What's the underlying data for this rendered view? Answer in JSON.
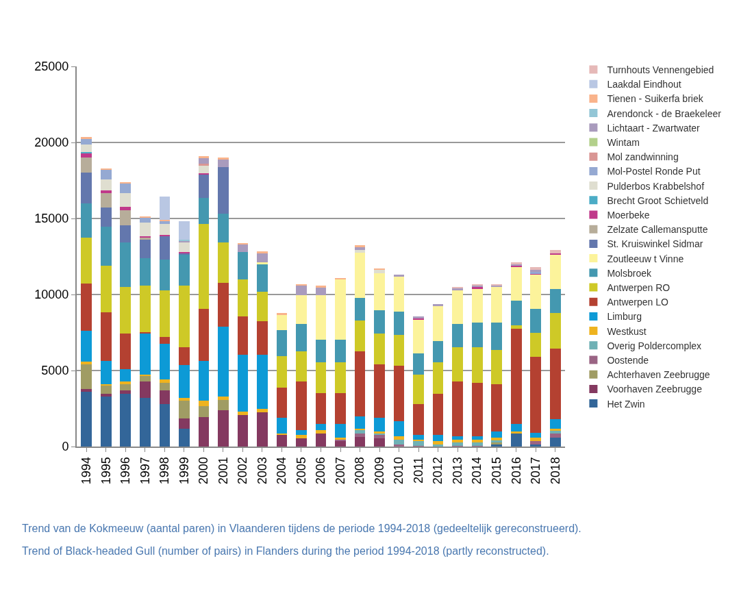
{
  "chart_data": {
    "type": "bar",
    "stacked": true,
    "categories": [
      "1994",
      "1995",
      "1996",
      "1997",
      "1998",
      "1999",
      "2000",
      "2001",
      "2002",
      "2003",
      "2004",
      "2005",
      "2006",
      "2007",
      "2008",
      "2009",
      "2010",
      "2011",
      "2012",
      "2013",
      "2014",
      "2015",
      "2016",
      "2017",
      "2018"
    ],
    "series": [
      {
        "name": "Het Zwin",
        "color": "#336699",
        "values": [
          3600,
          3290,
          3480,
          3180,
          2790,
          1170,
          null,
          null,
          null,
          null,
          null,
          null,
          null,
          null,
          null,
          null,
          null,
          null,
          null,
          null,
          null,
          150,
          870,
          150,
          570
        ]
      },
      {
        "name": "Voorhaven Zeebrugge",
        "color": "#843960",
        "values": [
          200,
          180,
          210,
          1110,
          900,
          690,
          1950,
          2370,
          2090,
          2270,
          750,
          540,
          860,
          360,
          650,
          560,
          null,
          null,
          null,
          null,
          null,
          null,
          null,
          null,
          null
        ]
      },
      {
        "name": "Achterhaven Zeebrugge",
        "color": "#a09c64",
        "values": [
          1600,
          530,
          400,
          330,
          510,
          1140,
          720,
          710,
          null,
          null,
          null,
          null,
          null,
          null,
          null,
          null,
          null,
          null,
          null,
          null,
          null,
          120,
          null,
          null,
          null
        ]
      },
      {
        "name": "Oostende",
        "color": "#9a6484",
        "values": [
          null,
          null,
          null,
          null,
          null,
          null,
          null,
          null,
          null,
          null,
          null,
          null,
          null,
          90,
          220,
          190,
          120,
          50,
          null,
          50,
          60,
          null,
          null,
          210,
          270
        ]
      },
      {
        "name": "Overig Poldercomplex",
        "color": "#6fb1b5",
        "values": [
          null,
          null,
          null,
          null,
          null,
          null,
          null,
          null,
          null,
          null,
          null,
          null,
          null,
          null,
          200,
          90,
          330,
          310,
          150,
          230,
          210,
          120,
          null,
          null,
          210
        ]
      },
      {
        "name": "Westkust",
        "color": "#eeb31f",
        "values": [
          200,
          120,
          210,
          120,
          210,
          210,
          330,
          220,
          210,
          210,
          120,
          230,
          210,
          120,
          120,
          150,
          230,
          110,
          210,
          190,
          200,
          180,
          120,
          240,
          120
        ]
      },
      {
        "name": "Limburg",
        "color": "#0d9ad6",
        "values": [
          2000,
          1500,
          800,
          2700,
          2330,
          2130,
          2610,
          4570,
          3720,
          3540,
          1010,
          300,
          420,
          920,
          810,
          890,
          1000,
          300,
          400,
          210,
          210,
          420,
          500,
          290,
          620
        ]
      },
      {
        "name": "Antwerpen LO",
        "color": "#b44131",
        "values": [
          3140,
          3230,
          2350,
          90,
          480,
          1200,
          3460,
          2910,
          2550,
          2220,
          2010,
          3230,
          2010,
          2010,
          4250,
          3540,
          3650,
          2030,
          2730,
          3620,
          3530,
          3120,
          6260,
          5030,
          4640
        ]
      },
      {
        "name": "Antwerpen RO",
        "color": "#cec927",
        "values": [
          3020,
          3050,
          3050,
          3050,
          3060,
          4040,
          5570,
          2660,
          2420,
          1940,
          2040,
          1950,
          2040,
          2040,
          2020,
          2030,
          2010,
          1920,
          2040,
          2250,
          2340,
          2240,
          220,
          1550,
          2340
        ]
      },
      {
        "name": "Molsbroek",
        "color": "#4498b0",
        "values": [
          2250,
          2540,
          2930,
          1820,
          2030,
          2030,
          1730,
          1890,
          1800,
          1820,
          1710,
          1800,
          1500,
          1500,
          1500,
          1530,
          1520,
          1420,
          1410,
          1500,
          1620,
          1820,
          1610,
          1600,
          1610
        ]
      },
      {
        "name": "Zoutleeuw t Vinne",
        "color": "#fcf39b",
        "values": [
          null,
          null,
          null,
          null,
          null,
          null,
          null,
          null,
          null,
          100,
          1040,
          1920,
          2930,
          3960,
          2960,
          2430,
          2330,
          2210,
          2300,
          2240,
          2210,
          2310,
          2250,
          2220,
          2220
        ]
      },
      {
        "name": "St. Kruiswinkel Sidmar",
        "color": "#6377ad",
        "values": [
          2030,
          1290,
          1100,
          1220,
          1500,
          120,
          1500,
          3050,
          null,
          null,
          null,
          null,
          null,
          null,
          null,
          null,
          null,
          null,
          null,
          null,
          null,
          null,
          null,
          null,
          null
        ]
      },
      {
        "name": "Zelzate Callemansputte",
        "color": "#b7ad9a",
        "values": [
          970,
          950,
          1020,
          130,
          null,
          null,
          null,
          null,
          null,
          null,
          null,
          null,
          null,
          null,
          null,
          null,
          null,
          null,
          null,
          null,
          null,
          null,
          null,
          null,
          null
        ]
      },
      {
        "name": "Moerbeke",
        "color": "#c0398a",
        "values": [
          250,
          150,
          200,
          90,
          120,
          80,
          120,
          null,
          null,
          null,
          null,
          null,
          null,
          null,
          null,
          null,
          null,
          80,
          null,
          null,
          100,
          null,
          90,
          90,
          100
        ]
      },
      {
        "name": "Brecht Groot Schietveld",
        "color": "#4bacc6",
        "values": [
          100,
          null,
          null,
          null,
          null,
          null,
          null,
          null,
          null,
          null,
          null,
          null,
          null,
          null,
          null,
          null,
          null,
          null,
          null,
          null,
          null,
          null,
          null,
          null,
          null
        ]
      },
      {
        "name": "Pulderbos Krabbelshof",
        "color": "#dfded0",
        "values": [
          500,
          750,
          930,
          900,
          720,
          620,
          500,
          null,
          null,
          null,
          null,
          null,
          null,
          null,
          210,
          200,
          null,
          null,
          null,
          null,
          null,
          null,
          null,
          null,
          null
        ]
      },
      {
        "name": "Mol-Postel Ronde Put",
        "color": "#95a9d2",
        "values": [
          370,
          600,
          600,
          330,
          180,
          null,
          null,
          null,
          null,
          null,
          null,
          null,
          null,
          null,
          null,
          null,
          null,
          null,
          null,
          null,
          null,
          null,
          null,
          90,
          null
        ]
      },
      {
        "name": "Mol zandwinning",
        "color": "#d99694",
        "values": [
          null,
          null,
          null,
          null,
          null,
          null,
          100,
          null,
          null,
          null,
          null,
          null,
          null,
          null,
          null,
          null,
          null,
          null,
          null,
          null,
          null,
          null,
          null,
          null,
          null
        ]
      },
      {
        "name": "Wintam",
        "color": "#b3d08b",
        "values": [
          null,
          null,
          null,
          null,
          null,
          null,
          null,
          null,
          null,
          null,
          null,
          null,
          null,
          null,
          null,
          null,
          null,
          null,
          null,
          null,
          null,
          null,
          null,
          null,
          null
        ]
      },
      {
        "name": "Lichtaart - Zwartwater",
        "color": "#a99bbd",
        "values": [
          null,
          null,
          null,
          null,
          null,
          110,
          390,
          510,
          510,
          600,
          null,
          620,
          500,
          null,
          180,
          null,
          120,
          120,
          120,
          120,
          120,
          120,
          80,
          150,
          null
        ]
      },
      {
        "name": "Arendonck - de Braekeleer",
        "color": "#93c6d6",
        "values": [
          null,
          null,
          null,
          null,
          null,
          70,
          null,
          null,
          null,
          null,
          null,
          null,
          null,
          null,
          null,
          null,
          null,
          null,
          null,
          null,
          null,
          null,
          null,
          null,
          null
        ]
      },
      {
        "name": "Tienen - Suikerfa briek",
        "color": "#f9b38b",
        "values": [
          120,
          120,
          120,
          80,
          100,
          null,
          120,
          100,
          100,
          120,
          90,
          100,
          100,
          90,
          110,
          100,
          null,
          null,
          null,
          null,
          null,
          null,
          null,
          null,
          null
        ]
      },
      {
        "name": "Laakdal Eindhout",
        "color": "#b9c7e3",
        "values": [
          null,
          null,
          null,
          null,
          1520,
          1230,
          null,
          null,
          null,
          null,
          null,
          null,
          null,
          null,
          null,
          null,
          null,
          null,
          null,
          null,
          null,
          null,
          null,
          null,
          null
        ]
      },
      {
        "name": "Turnhouts Vennengebied",
        "color": "#e6b9b8",
        "values": [
          null,
          null,
          null,
          null,
          null,
          null,
          null,
          null,
          null,
          null,
          null,
          null,
          null,
          null,
          null,
          null,
          null,
          null,
          null,
          90,
          90,
          90,
          100,
          180,
          230
        ]
      }
    ],
    "ylim": [
      0,
      25000
    ],
    "yticks": [
      0,
      5000,
      10000,
      15000,
      20000,
      25000
    ],
    "grid": "y",
    "legend": "right",
    "annotations": [
      "Trend van de Kokmeeuw (aantal paren) in Vlaanderen tijdens de periode 1994-2018 (gedeeltelijk gereconstrueerd).",
      "Trend of Black-headed Gull (number of pairs) in Flanders during the period 1994-2018 (partly reconstructed)."
    ]
  }
}
